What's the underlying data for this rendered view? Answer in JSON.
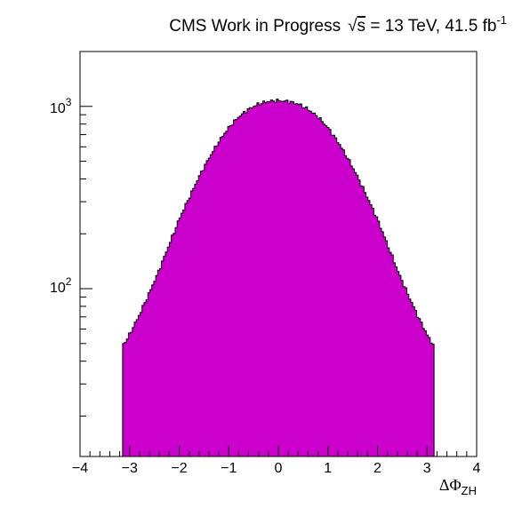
{
  "chart_data": {
    "type": "histogram",
    "title_parts": {
      "prefix": "CMS Work in Progress",
      "sqrt_symbol": "√",
      "sqrt_arg": "s",
      "energy": " = 13 TeV, 41.5 fb",
      "lumi_exponent": "-1"
    },
    "xlabel_parts": {
      "main": "ΔΦ",
      "sub": "ZH"
    },
    "ylabel": "",
    "xlim": [
      -4,
      4
    ],
    "ylim": [
      12,
      2000
    ],
    "y_scale": "log",
    "x_ticks": [
      "−4",
      "−3",
      "−2",
      "−1",
      "0",
      "1",
      "2",
      "3",
      "4"
    ],
    "y_ticks": [
      {
        "base": "10",
        "exp": "2"
      },
      {
        "base": "10",
        "exp": "3"
      }
    ],
    "fill_color": "#cc00cc",
    "edge_color": "#000000",
    "grid": false,
    "legend": "none",
    "range": [
      -3.14159,
      3.14159
    ],
    "sigma": 1.24,
    "x": [
      -3.1,
      -3.0,
      -2.8,
      -2.6,
      -2.4,
      -2.2,
      -2.0,
      -1.8,
      -1.6,
      -1.4,
      -1.2,
      -1.0,
      -0.8,
      -0.6,
      -0.4,
      -0.2,
      0.0,
      0.2,
      0.4,
      0.6,
      0.8,
      1.0,
      1.2,
      1.4,
      1.6,
      1.8,
      2.0,
      2.2,
      2.4,
      2.6,
      2.8,
      3.0,
      3.1
    ],
    "values": [
      50,
      56,
      72,
      95,
      127,
      175,
      240,
      315,
      410,
      520,
      640,
      765,
      875,
      965,
      1030,
      1065,
      1075,
      1065,
      1030,
      965,
      875,
      765,
      640,
      520,
      410,
      315,
      240,
      175,
      127,
      95,
      72,
      56,
      50
    ]
  }
}
